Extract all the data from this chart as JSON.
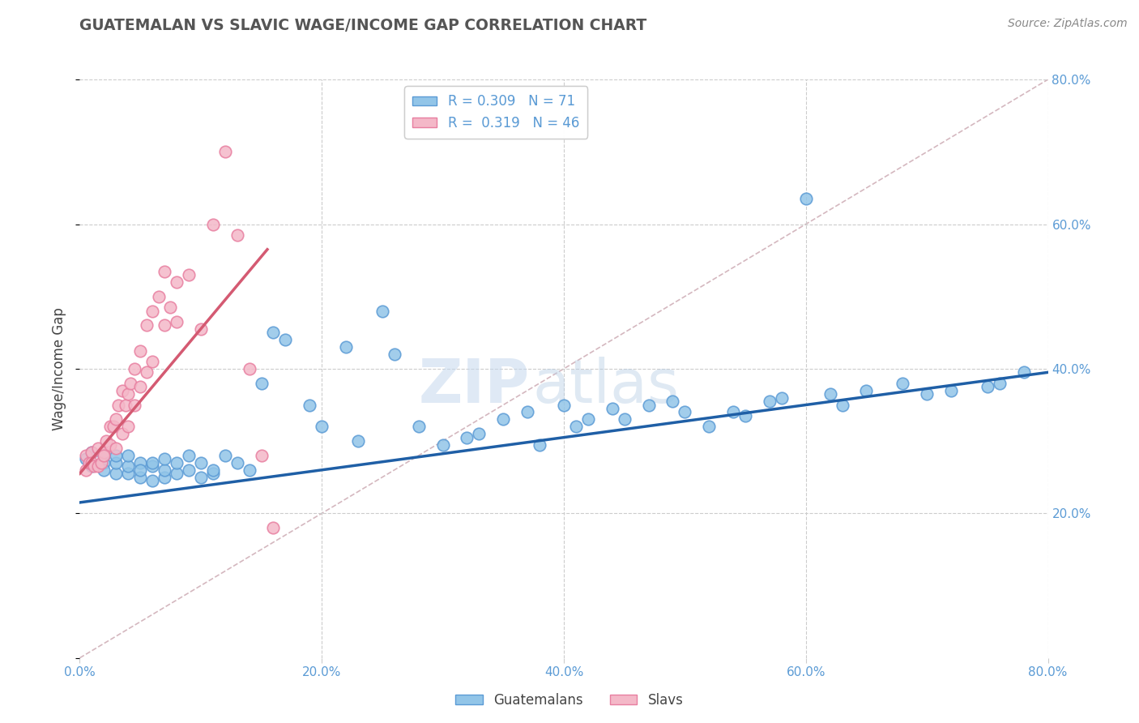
{
  "title": "GUATEMALAN VS SLAVIC WAGE/INCOME GAP CORRELATION CHART",
  "source": "Source: ZipAtlas.com",
  "ylabel": "Wage/Income Gap",
  "xlim": [
    0.0,
    0.8
  ],
  "ylim": [
    0.0,
    0.8
  ],
  "xticks": [
    0.0,
    0.2,
    0.4,
    0.6,
    0.8
  ],
  "yticks": [
    0.0,
    0.2,
    0.4,
    0.6,
    0.8
  ],
  "blue_color": "#92c5e8",
  "blue_edge_color": "#5b9bd5",
  "pink_color": "#f4b8c8",
  "pink_edge_color": "#e87fa0",
  "blue_line_color": "#1f5fa6",
  "pink_line_color": "#d45a72",
  "diag_color": "#d0b0b8",
  "grid_color": "#cccccc",
  "legend_r_blue": "0.309",
  "legend_n_blue": "71",
  "legend_r_pink": "0.319",
  "legend_n_pink": "46",
  "legend_label_blue": "Guatemalans",
  "legend_label_pink": "Slavs",
  "watermark_zip": "ZIP",
  "watermark_atlas": "atlas",
  "title_color": "#555555",
  "source_color": "#888888",
  "tick_color": "#5b9bd5",
  "ylabel_color": "#444444",
  "blue_line_x": [
    0.0,
    0.8
  ],
  "blue_line_y": [
    0.215,
    0.395
  ],
  "pink_line_x": [
    0.0,
    0.155
  ],
  "pink_line_y": [
    0.255,
    0.565
  ],
  "diag_line_x": [
    0.0,
    0.8
  ],
  "diag_line_y": [
    0.0,
    0.8
  ],
  "blue_x": [
    0.005,
    0.01,
    0.01,
    0.02,
    0.02,
    0.02,
    0.03,
    0.03,
    0.03,
    0.04,
    0.04,
    0.04,
    0.05,
    0.05,
    0.05,
    0.06,
    0.06,
    0.06,
    0.07,
    0.07,
    0.07,
    0.08,
    0.08,
    0.09,
    0.09,
    0.1,
    0.1,
    0.11,
    0.11,
    0.12,
    0.13,
    0.14,
    0.15,
    0.16,
    0.17,
    0.19,
    0.2,
    0.22,
    0.23,
    0.25,
    0.26,
    0.28,
    0.3,
    0.32,
    0.33,
    0.35,
    0.37,
    0.38,
    0.4,
    0.41,
    0.42,
    0.44,
    0.45,
    0.47,
    0.49,
    0.5,
    0.52,
    0.54,
    0.55,
    0.57,
    0.58,
    0.6,
    0.62,
    0.63,
    0.65,
    0.68,
    0.7,
    0.72,
    0.75,
    0.76,
    0.78
  ],
  "blue_y": [
    0.275,
    0.265,
    0.285,
    0.27,
    0.26,
    0.28,
    0.255,
    0.27,
    0.28,
    0.255,
    0.265,
    0.28,
    0.25,
    0.27,
    0.26,
    0.245,
    0.265,
    0.27,
    0.25,
    0.26,
    0.275,
    0.255,
    0.27,
    0.26,
    0.28,
    0.25,
    0.27,
    0.255,
    0.26,
    0.28,
    0.27,
    0.26,
    0.38,
    0.45,
    0.44,
    0.35,
    0.32,
    0.43,
    0.3,
    0.48,
    0.42,
    0.32,
    0.295,
    0.305,
    0.31,
    0.33,
    0.34,
    0.295,
    0.35,
    0.32,
    0.33,
    0.345,
    0.33,
    0.35,
    0.355,
    0.34,
    0.32,
    0.34,
    0.335,
    0.355,
    0.36,
    0.635,
    0.365,
    0.35,
    0.37,
    0.38,
    0.365,
    0.37,
    0.375,
    0.38,
    0.395
  ],
  "pink_x": [
    0.005,
    0.005,
    0.008,
    0.01,
    0.01,
    0.012,
    0.015,
    0.015,
    0.018,
    0.02,
    0.02,
    0.022,
    0.025,
    0.025,
    0.028,
    0.03,
    0.03,
    0.032,
    0.035,
    0.035,
    0.038,
    0.04,
    0.04,
    0.042,
    0.045,
    0.045,
    0.05,
    0.05,
    0.055,
    0.055,
    0.06,
    0.06,
    0.065,
    0.07,
    0.07,
    0.075,
    0.08,
    0.08,
    0.09,
    0.1,
    0.11,
    0.12,
    0.13,
    0.14,
    0.15,
    0.16
  ],
  "pink_y": [
    0.28,
    0.26,
    0.27,
    0.285,
    0.27,
    0.265,
    0.29,
    0.265,
    0.27,
    0.285,
    0.28,
    0.3,
    0.32,
    0.295,
    0.32,
    0.33,
    0.29,
    0.35,
    0.37,
    0.31,
    0.35,
    0.365,
    0.32,
    0.38,
    0.4,
    0.35,
    0.425,
    0.375,
    0.46,
    0.395,
    0.48,
    0.41,
    0.5,
    0.535,
    0.46,
    0.485,
    0.52,
    0.465,
    0.53,
    0.455,
    0.6,
    0.7,
    0.585,
    0.4,
    0.28,
    0.18
  ]
}
